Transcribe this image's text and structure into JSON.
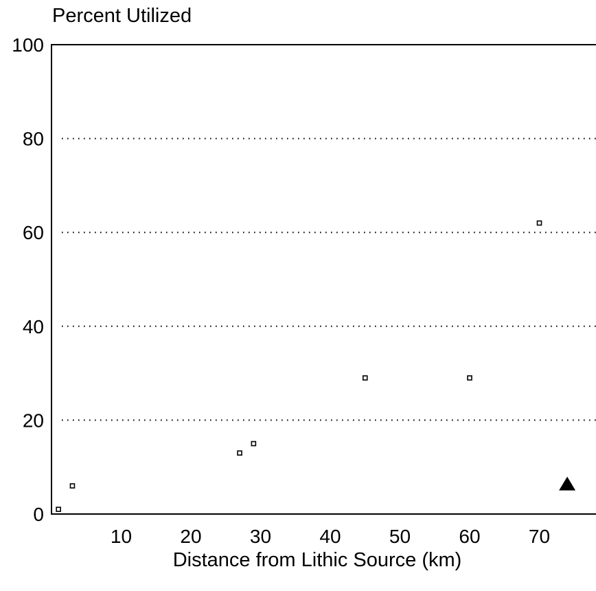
{
  "chart_data": {
    "type": "scatter",
    "title": "",
    "ylabel": "Percent Utilized",
    "xlabel": "Distance from Lithic Source (km)",
    "xlim": [
      0,
      79
    ],
    "ylim": [
      0,
      100
    ],
    "x_ticks": [
      10,
      20,
      30,
      40,
      50,
      60,
      70
    ],
    "y_ticks": [
      0,
      20,
      40,
      60,
      80,
      100
    ],
    "grid": "horizontal dotted lines at 20, 40, 60, 80",
    "legend": "none",
    "series": [
      {
        "marker": "open-square",
        "points": [
          {
            "x": 1,
            "y": 1
          },
          {
            "x": 3,
            "y": 6
          },
          {
            "x": 27,
            "y": 13
          },
          {
            "x": 29,
            "y": 15
          },
          {
            "x": 45,
            "y": 29
          },
          {
            "x": 60,
            "y": 29
          },
          {
            "x": 70,
            "y": 62
          }
        ]
      },
      {
        "marker": "filled-triangle",
        "points": [
          {
            "x": 74,
            "y": 6.5
          }
        ]
      }
    ]
  }
}
